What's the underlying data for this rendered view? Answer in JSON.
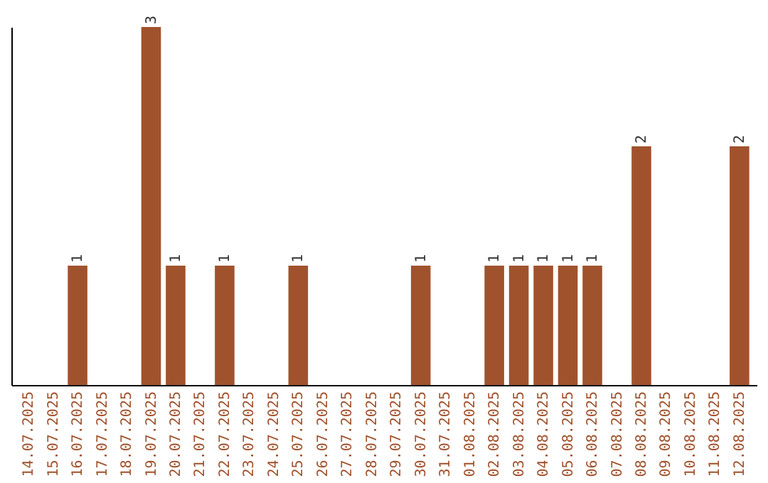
{
  "chart_data": {
    "type": "bar",
    "categories": [
      "14.07.2025",
      "15.07.2025",
      "16.07.2025",
      "17.07.2025",
      "18.07.2025",
      "19.07.2025",
      "20.07.2025",
      "21.07.2025",
      "22.07.2025",
      "23.07.2025",
      "24.07.2025",
      "25.07.2025",
      "26.07.2025",
      "27.07.2025",
      "28.07.2025",
      "29.07.2025",
      "30.07.2025",
      "31.07.2025",
      "01.08.2025",
      "02.08.2025",
      "03.08.2025",
      "04.08.2025",
      "05.08.2025",
      "06.08.2025",
      "07.08.2025",
      "08.08.2025",
      "09.08.2025",
      "10.08.2025",
      "11.08.2025",
      "12.08.2025"
    ],
    "values": [
      null,
      null,
      1,
      null,
      null,
      3,
      1,
      null,
      1,
      null,
      null,
      1,
      null,
      null,
      null,
      null,
      1,
      null,
      null,
      1,
      1,
      1,
      1,
      1,
      null,
      2,
      null,
      null,
      null,
      2
    ],
    "color": "#a0522d",
    "data_labels": true,
    "tick_labels": "x"
  }
}
